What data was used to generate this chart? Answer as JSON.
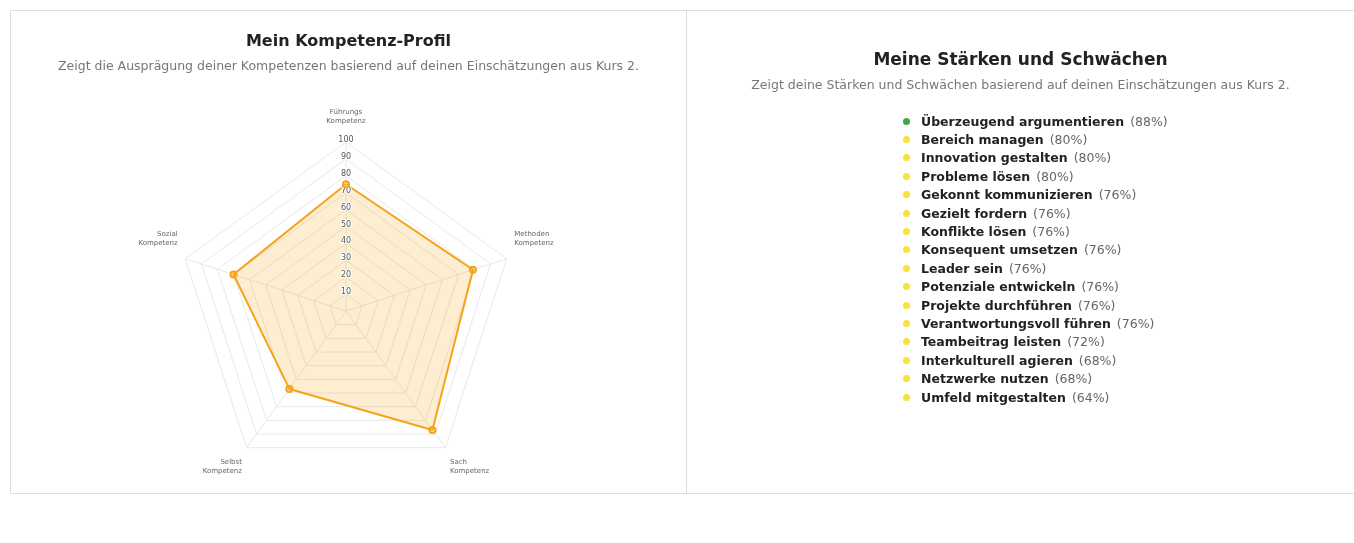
{
  "chart_data": [
    {
      "type": "radar",
      "title": "Mein Kompetenz-Profil",
      "subtitle": "Zeigt die Ausprägung deiner Kompetenzen basierend auf deinen Einschätzungen aus Kurs 2.",
      "categories": [
        "Führungs Kompetenz",
        "Methoden Kompetenz",
        "Sach Kompetenz",
        "Selbst Kompetenz",
        "Sozial Kompetenz"
      ],
      "series": [
        {
          "color": "#f5a31a",
          "values": [
            75,
            79,
            87,
            57,
            70
          ]
        }
      ],
      "ylim": [
        0,
        100
      ],
      "yticks": [
        10,
        20,
        30,
        40,
        50,
        60,
        70,
        80,
        90,
        100
      ],
      "grid": true,
      "marker": "circle"
    },
    {
      "type": "other",
      "title": "Meine Stärken und Schwächen",
      "subtitle": "Zeigt deine Stärken und Schwächen basierend auf deinen Einschätzungen aus Kurs 2.",
      "categories": [
        "Überzeugend argumentieren",
        "Bereich managen",
        "Innovation gestalten",
        "Probleme lösen",
        "Gekonnt kommunizieren",
        "Gezielt fordern",
        "Konflikte lösen",
        "Konsequent umsetzen",
        "Leader sein",
        "Potenziale entwickeln",
        "Projekte durchführen",
        "Verantwortungsvoll führen",
        "Teambeitrag leisten",
        "Interkulturell agieren",
        "Netzwerke nutzen",
        "Umfeld mitgestalten"
      ],
      "values": [
        88,
        80,
        80,
        80,
        76,
        76,
        76,
        76,
        76,
        76,
        76,
        76,
        72,
        68,
        68,
        64
      ],
      "value_labels": [
        "(88%)",
        "(80%)",
        "(80%)",
        "(80%)",
        "(76%)",
        "(76%)",
        "(76%)",
        "(76%)",
        "(76%)",
        "(76%)",
        "(76%)",
        "(76%)",
        "(72%)",
        "(68%)",
        "(68%)",
        "(64%)"
      ],
      "colors": [
        "#3daa46",
        "#f8e23b",
        "#f8e23b",
        "#f8e23b",
        "#f8e23b",
        "#f8e23b",
        "#f8e23b",
        "#f8e23b",
        "#f8e23b",
        "#f8e23b",
        "#f8e23b",
        "#f8e23b",
        "#f8e23b",
        "#f8e23b",
        "#f8e23b",
        "#f8e23b"
      ]
    }
  ]
}
